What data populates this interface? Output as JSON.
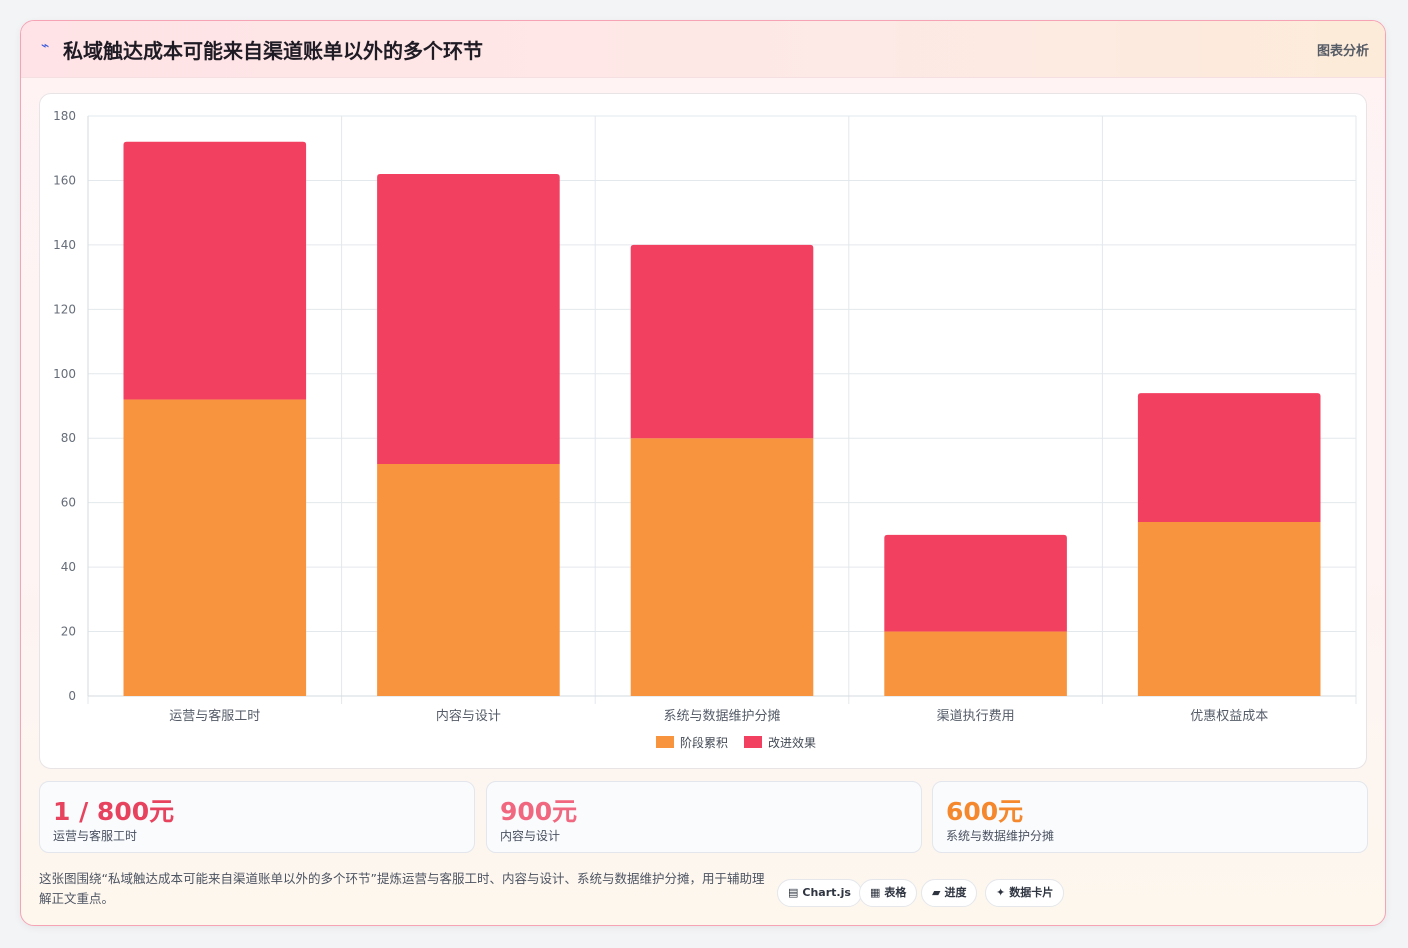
{
  "header": {
    "icon": "trend-icon",
    "title": "私域触达成本可能来自渠道账单以外的多个环节",
    "tag": "图表分析"
  },
  "chart_data": {
    "type": "bar",
    "stacked": true,
    "categories": [
      "运营与客服工时",
      "内容与设计",
      "系统与数据维护分摊",
      "渠道执行费用",
      "优惠权益成本"
    ],
    "series": [
      {
        "name": "阶段累积",
        "color": "#f9943e",
        "values": [
          92,
          72,
          80,
          20,
          54
        ]
      },
      {
        "name": "改进效果",
        "color": "#f24060",
        "values": [
          80,
          90,
          60,
          30,
          40
        ]
      }
    ],
    "ylim": [
      0,
      180
    ],
    "yticks": [
      0,
      20,
      40,
      60,
      80,
      100,
      120,
      140,
      160,
      180
    ],
    "grid": true,
    "legend": "bottom"
  },
  "stats": [
    {
      "value": "1 / 800元",
      "label": "运营与客服工时",
      "color": "#e8435e"
    },
    {
      "value": "900元",
      "label": "内容与设计",
      "color": "#f0677f"
    },
    {
      "value": "600元",
      "label": "系统与数据维护分摊",
      "color": "#f5872c"
    }
  ],
  "note": "这张图围绕“私域触达成本可能来自渠道账单以外的多个环节”提炼运营与客服工时、内容与设计、系统与数据维护分摊，用于辅助理解正文重点。",
  "chips": [
    {
      "icon": "▤",
      "label": "Chart.js"
    },
    {
      "icon": "▦",
      "label": "表格"
    },
    {
      "icon": "▰",
      "label": "进度"
    },
    {
      "icon": "✦",
      "label": "数据卡片"
    }
  ]
}
